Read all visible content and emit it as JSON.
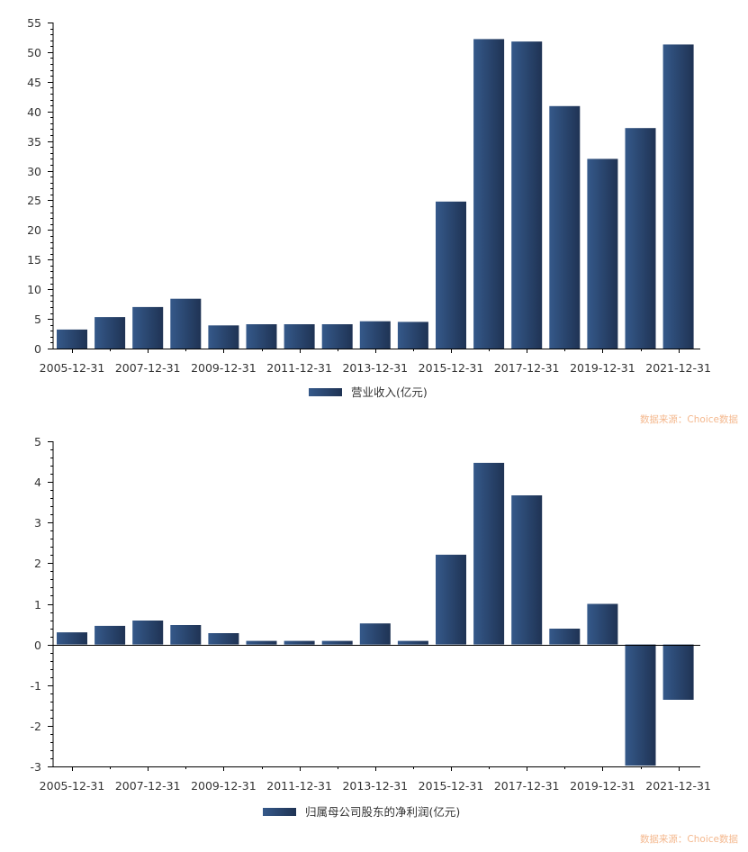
{
  "chart_data": [
    {
      "type": "bar",
      "title": "",
      "xlabel": "",
      "ylabel": "",
      "ylim": [
        0,
        55
      ],
      "yticks": [
        0,
        5,
        10,
        15,
        20,
        25,
        30,
        35,
        40,
        45,
        50,
        55
      ],
      "ytick_labels": [
        "0",
        "5",
        "10",
        "15",
        "20",
        "25",
        "30",
        "35",
        "40",
        "45",
        "50",
        "55"
      ],
      "grid": false,
      "categories": [
        "2005-12-31",
        "2006-12-31",
        "2007-12-31",
        "2008-12-31",
        "2009-12-31",
        "2010-12-31",
        "2011-12-31",
        "2012-12-31",
        "2013-12-31",
        "2014-12-31",
        "2015-12-31",
        "2016-12-31",
        "2017-12-31",
        "2018-12-31",
        "2019-12-31",
        "2020-12-31",
        "2021-12-31"
      ],
      "xtick_labels": [
        "2005-12-31",
        "2007-12-31",
        "2009-12-31",
        "2011-12-31",
        "2013-12-31",
        "2015-12-31",
        "2017-12-31",
        "2019-12-31",
        "2021-12-31"
      ],
      "series": [
        {
          "name": "营业收入(亿元)",
          "values": [
            3.2,
            5.3,
            7.0,
            8.4,
            3.9,
            4.1,
            4.1,
            4.1,
            4.6,
            4.5,
            24.8,
            52.2,
            51.8,
            40.9,
            32.0,
            37.2,
            51.3
          ]
        }
      ],
      "legend": {
        "position": "bottom-center",
        "label": "营业收入(亿元)"
      },
      "source_note": "数据来源：Choice数据"
    },
    {
      "type": "bar",
      "title": "",
      "xlabel": "",
      "ylabel": "",
      "ylim": [
        -3,
        5
      ],
      "yticks": [
        -3,
        -2,
        -1,
        0,
        1,
        2,
        3,
        4,
        5
      ],
      "ytick_labels": [
        "-3",
        "-2",
        "-1",
        "0",
        "1",
        "2",
        "3",
        "4",
        "5"
      ],
      "grid": false,
      "categories": [
        "2005-12-31",
        "2006-12-31",
        "2007-12-31",
        "2008-12-31",
        "2009-12-31",
        "2010-12-31",
        "2011-12-31",
        "2012-12-31",
        "2013-12-31",
        "2014-12-31",
        "2015-12-31",
        "2016-12-31",
        "2017-12-31",
        "2018-12-31",
        "2019-12-31",
        "2020-12-31",
        "2021-12-31"
      ],
      "xtick_labels": [
        "2005-12-31",
        "2007-12-31",
        "2009-12-31",
        "2011-12-31",
        "2013-12-31",
        "2015-12-31",
        "2017-12-31",
        "2019-12-31",
        "2021-12-31"
      ],
      "series": [
        {
          "name": "归属母公司股东的净利润(亿元)",
          "values": [
            0.3,
            0.46,
            0.59,
            0.48,
            0.28,
            0.09,
            0.09,
            0.09,
            0.52,
            0.09,
            2.21,
            4.47,
            3.67,
            0.39,
            1.0,
            -2.98,
            -1.36
          ]
        }
      ],
      "legend": {
        "position": "bottom-center",
        "label": "归属母公司股东的净利润(亿元)"
      },
      "source_note": "数据来源：Choice数据"
    }
  ],
  "colors": {
    "bar_light": "#35598a",
    "bar_dark": "#1f3354",
    "source_note": "#f4b88e"
  }
}
